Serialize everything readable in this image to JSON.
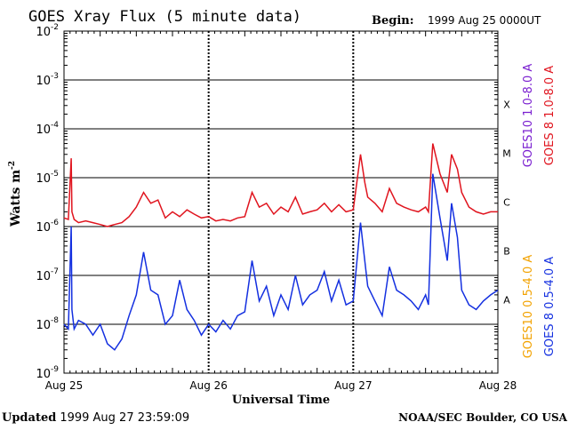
{
  "chart_data": {
    "type": "line",
    "title": "GOES Xray Flux (5 minute data)",
    "begin_label": "Begin:",
    "begin_value": "1999 Aug 25 0000UT",
    "xlabel": "Universal Time",
    "ylabel": "Watts m",
    "ylabel_sup": "-2",
    "y_scale": "log",
    "ylim": [
      1e-09,
      0.01
    ],
    "y_ticks": [
      {
        "base": "10",
        "exp": "-2"
      },
      {
        "base": "10",
        "exp": "-3"
      },
      {
        "base": "10",
        "exp": "-4"
      },
      {
        "base": "10",
        "exp": "-5"
      },
      {
        "base": "10",
        "exp": "-6"
      },
      {
        "base": "10",
        "exp": "-7"
      },
      {
        "base": "10",
        "exp": "-8"
      },
      {
        "base": "10",
        "exp": "-9"
      }
    ],
    "x_ticks": [
      "Aug 25",
      "Aug 26",
      "Aug 27",
      "Aug 28"
    ],
    "xlim": [
      0,
      3
    ],
    "x_unit": "days since 1999 Aug 25 00:00 UT",
    "flare_classes": [
      "X",
      "M",
      "C",
      "B",
      "A"
    ],
    "grid": true,
    "legend_position": "right",
    "series": [
      {
        "name": "GOES 8 1.0-8.0 A",
        "color": "#e0141e",
        "x": [
          0,
          0.03,
          0.05,
          0.055,
          0.07,
          0.1,
          0.15,
          0.2,
          0.25,
          0.3,
          0.35,
          0.4,
          0.45,
          0.5,
          0.55,
          0.6,
          0.65,
          0.7,
          0.75,
          0.8,
          0.85,
          0.9,
          0.95,
          1.0,
          1.05,
          1.1,
          1.15,
          1.2,
          1.25,
          1.3,
          1.35,
          1.4,
          1.45,
          1.5,
          1.55,
          1.6,
          1.65,
          1.7,
          1.75,
          1.8,
          1.85,
          1.9,
          1.95,
          2.0,
          2.05,
          2.08,
          2.1,
          2.15,
          2.2,
          2.25,
          2.3,
          2.35,
          2.4,
          2.45,
          2.5,
          2.52,
          2.55,
          2.6,
          2.65,
          2.68,
          2.72,
          2.75,
          2.8,
          2.85,
          2.9,
          2.95,
          3.0
        ],
        "y": [
          1.5e-06,
          1.4e-06,
          2.5e-05,
          2e-06,
          1.4e-06,
          1.2e-06,
          1.3e-06,
          1.2e-06,
          1.1e-06,
          1e-06,
          1.1e-06,
          1.2e-06,
          1.6e-06,
          2.5e-06,
          5e-06,
          3e-06,
          3.5e-06,
          1.5e-06,
          2e-06,
          1.6e-06,
          2.2e-06,
          1.8e-06,
          1.5e-06,
          1.6e-06,
          1.3e-06,
          1.4e-06,
          1.3e-06,
          1.5e-06,
          1.6e-06,
          5e-06,
          2.5e-06,
          3e-06,
          1.8e-06,
          2.5e-06,
          2e-06,
          4e-06,
          1.8e-06,
          2e-06,
          2.2e-06,
          3e-06,
          2e-06,
          2.8e-06,
          2e-06,
          2.2e-06,
          3e-05,
          8e-06,
          4e-06,
          3e-06,
          2e-06,
          6e-06,
          3e-06,
          2.5e-06,
          2.2e-06,
          2e-06,
          2.5e-06,
          2e-06,
          5e-05,
          1.2e-05,
          5e-06,
          3e-05,
          1.5e-05,
          5e-06,
          2.5e-06,
          2e-06,
          1.8e-06,
          2e-06,
          2e-06
        ]
      },
      {
        "name": "GOES 8 0.5-4.0 A",
        "color": "#1430e0",
        "x": [
          0,
          0.03,
          0.05,
          0.055,
          0.07,
          0.1,
          0.15,
          0.2,
          0.25,
          0.3,
          0.35,
          0.4,
          0.45,
          0.5,
          0.55,
          0.6,
          0.65,
          0.7,
          0.75,
          0.8,
          0.85,
          0.9,
          0.95,
          1.0,
          1.05,
          1.1,
          1.15,
          1.2,
          1.25,
          1.3,
          1.35,
          1.4,
          1.45,
          1.5,
          1.55,
          1.6,
          1.65,
          1.7,
          1.75,
          1.8,
          1.85,
          1.9,
          1.95,
          2.0,
          2.05,
          2.08,
          2.1,
          2.15,
          2.2,
          2.25,
          2.3,
          2.35,
          2.4,
          2.45,
          2.5,
          2.52,
          2.55,
          2.6,
          2.65,
          2.68,
          2.72,
          2.75,
          2.8,
          2.85,
          2.9,
          2.95,
          3.0
        ],
        "y": [
          1e-08,
          8e-09,
          1e-06,
          2e-08,
          8e-09,
          1.2e-08,
          1e-08,
          6e-09,
          1e-08,
          4e-09,
          3e-09,
          5e-09,
          1.5e-08,
          4e-08,
          3e-07,
          5e-08,
          4e-08,
          1e-08,
          1.5e-08,
          8e-08,
          2e-08,
          1.2e-08,
          6e-09,
          1e-08,
          7e-09,
          1.2e-08,
          8e-09,
          1.5e-08,
          1.8e-08,
          2e-07,
          3e-08,
          6e-08,
          1.5e-08,
          4e-08,
          2e-08,
          1e-07,
          2.5e-08,
          4e-08,
          5e-08,
          1.2e-07,
          3e-08,
          8e-08,
          2.5e-08,
          3e-08,
          1.2e-06,
          2e-07,
          6e-08,
          3e-08,
          1.5e-08,
          1.5e-07,
          5e-08,
          4e-08,
          3e-08,
          2e-08,
          4e-08,
          2.5e-08,
          1.2e-05,
          1.5e-06,
          2e-07,
          3e-06,
          6e-07,
          5e-08,
          2.5e-08,
          2e-08,
          3e-08,
          4e-08,
          5e-08
        ]
      }
    ],
    "legend_entries": [
      {
        "name": "GOES10 1.0-8.0 A",
        "color": "#7a1fd0"
      },
      {
        "name": "GOES 8 1.0-8.0 A",
        "color": "#e0141e"
      },
      {
        "name": "GOES10 0.5-4.0 A",
        "color": "#f2a200"
      },
      {
        "name": "GOES 8 0.5-4.0 A",
        "color": "#1430e0"
      }
    ]
  },
  "footer": {
    "updated_label": "Updated",
    "updated_value": "1999 Aug 27 23:59:09",
    "credit": "NOAA/SEC Boulder, CO USA"
  }
}
